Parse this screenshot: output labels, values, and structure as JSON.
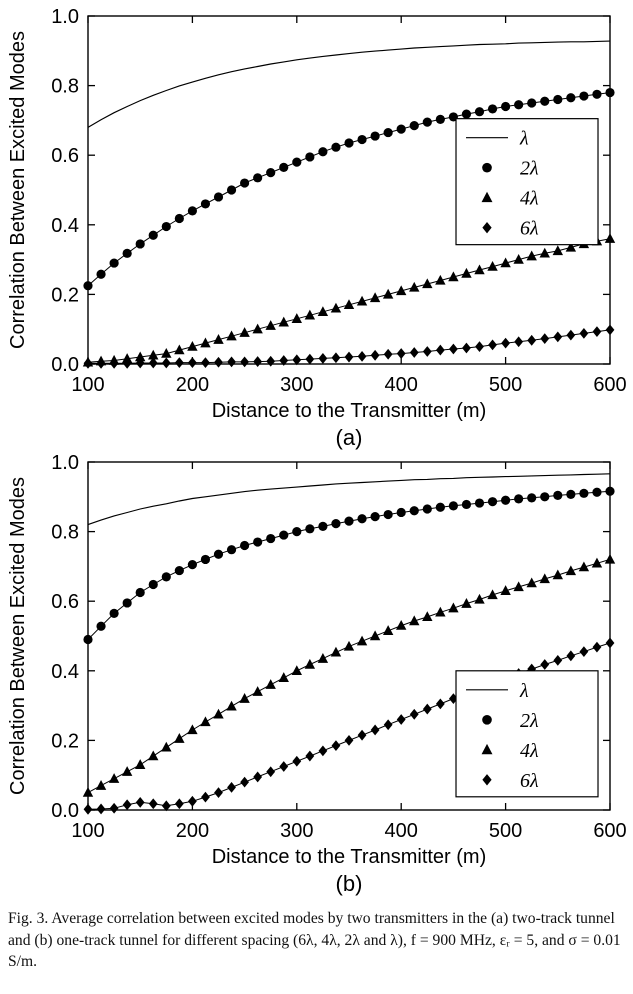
{
  "page": {
    "background": "#ffffff",
    "foreground": "#000000"
  },
  "chart_data": [
    {
      "id": "a",
      "type": "line",
      "sublabel": "(a)",
      "xlabel": "Distance to the Transmitter (m)",
      "ylabel": "Correlation Between Excited Modes",
      "xlim": [
        100,
        600
      ],
      "ylim": [
        0,
        1
      ],
      "xticks": [
        100,
        200,
        300,
        400,
        500,
        600
      ],
      "xtick_labels": [
        "100",
        "200",
        "300",
        "400",
        "500",
        "600"
      ],
      "yticks": [
        0,
        0.2,
        0.4,
        0.6,
        0.8,
        1
      ],
      "ytick_labels": [
        "0.0",
        "0.2",
        "0.4",
        "0.6",
        "0.8",
        "1.0"
      ],
      "grid": false,
      "x_start": 100,
      "x_step": 12.5,
      "legend": {
        "position": "right-upper-inside",
        "fx": 0.705,
        "fy": 0.295,
        "entries": [
          "λ",
          "2λ",
          "4λ",
          "6λ"
        ]
      },
      "series": [
        {
          "id": "lambda",
          "name": "λ",
          "marker": "none",
          "values": [
            0.68,
            0.702,
            0.722,
            0.74,
            0.757,
            0.772,
            0.786,
            0.799,
            0.81,
            0.821,
            0.831,
            0.84,
            0.848,
            0.855,
            0.862,
            0.868,
            0.874,
            0.879,
            0.884,
            0.888,
            0.892,
            0.896,
            0.899,
            0.902,
            0.905,
            0.908,
            0.91,
            0.912,
            0.914,
            0.916,
            0.918,
            0.919,
            0.92,
            0.922,
            0.923,
            0.924,
            0.925,
            0.926,
            0.926,
            0.927,
            0.928
          ]
        },
        {
          "id": "2lambda",
          "name": "2λ",
          "marker": "circle",
          "values": [
            0.225,
            0.258,
            0.29,
            0.318,
            0.345,
            0.37,
            0.395,
            0.418,
            0.44,
            0.46,
            0.48,
            0.5,
            0.52,
            0.535,
            0.55,
            0.565,
            0.58,
            0.595,
            0.61,
            0.623,
            0.635,
            0.645,
            0.655,
            0.665,
            0.675,
            0.685,
            0.695,
            0.703,
            0.71,
            0.718,
            0.725,
            0.733,
            0.74,
            0.745,
            0.75,
            0.755,
            0.76,
            0.765,
            0.77,
            0.775,
            0.78
          ]
        },
        {
          "id": "4lambda",
          "name": "4λ",
          "marker": "triangle-up",
          "values": [
            0.005,
            0.008,
            0.01,
            0.015,
            0.02,
            0.025,
            0.03,
            0.04,
            0.05,
            0.06,
            0.07,
            0.08,
            0.09,
            0.1,
            0.11,
            0.12,
            0.13,
            0.14,
            0.15,
            0.16,
            0.17,
            0.18,
            0.19,
            0.2,
            0.21,
            0.22,
            0.23,
            0.24,
            0.25,
            0.26,
            0.27,
            0.28,
            0.29,
            0.3,
            0.31,
            0.318,
            0.325,
            0.335,
            0.345,
            0.353,
            0.36
          ]
        },
        {
          "id": "6lambda",
          "name": "6λ",
          "marker": "diamond",
          "values": [
            0.002,
            0.002,
            0.002,
            0.002,
            0.003,
            0.003,
            0.003,
            0.004,
            0.004,
            0.004,
            0.005,
            0.006,
            0.006,
            0.007,
            0.008,
            0.01,
            0.012,
            0.014,
            0.016,
            0.018,
            0.02,
            0.022,
            0.025,
            0.028,
            0.03,
            0.033,
            0.036,
            0.04,
            0.043,
            0.046,
            0.05,
            0.055,
            0.06,
            0.064,
            0.068,
            0.073,
            0.078,
            0.083,
            0.088,
            0.093,
            0.098
          ]
        }
      ]
    },
    {
      "id": "b",
      "type": "line",
      "sublabel": "(b)",
      "xlabel": "Distance to the Transmitter (m)",
      "ylabel": "Correlation Between Excited Modes",
      "xlim": [
        100,
        600
      ],
      "ylim": [
        0,
        1
      ],
      "xticks": [
        100,
        200,
        300,
        400,
        500,
        600
      ],
      "xtick_labels": [
        "100",
        "200",
        "300",
        "400",
        "500",
        "600"
      ],
      "yticks": [
        0,
        0.2,
        0.4,
        0.6,
        0.8,
        1
      ],
      "ytick_labels": [
        "0.0",
        "0.2",
        "0.4",
        "0.6",
        "0.8",
        "1.0"
      ],
      "grid": false,
      "x_start": 100,
      "x_step": 12.5,
      "legend": {
        "position": "right-lower-inside",
        "fx": 0.705,
        "fy": 0.6,
        "entries": [
          "λ",
          "2λ",
          "4λ",
          "6λ"
        ]
      },
      "series": [
        {
          "id": "lambda",
          "name": "λ",
          "marker": "none",
          "values": [
            0.82,
            0.833,
            0.845,
            0.855,
            0.865,
            0.873,
            0.88,
            0.888,
            0.895,
            0.9,
            0.905,
            0.91,
            0.915,
            0.919,
            0.922,
            0.925,
            0.928,
            0.931,
            0.934,
            0.937,
            0.939,
            0.941,
            0.943,
            0.945,
            0.947,
            0.949,
            0.95,
            0.952,
            0.953,
            0.955,
            0.956,
            0.957,
            0.958,
            0.959,
            0.96,
            0.961,
            0.962,
            0.963,
            0.964,
            0.965,
            0.966
          ]
        },
        {
          "id": "2lambda",
          "name": "2λ",
          "marker": "circle",
          "values": [
            0.49,
            0.528,
            0.565,
            0.595,
            0.625,
            0.648,
            0.67,
            0.688,
            0.705,
            0.72,
            0.735,
            0.748,
            0.76,
            0.77,
            0.78,
            0.79,
            0.8,
            0.808,
            0.815,
            0.823,
            0.83,
            0.837,
            0.843,
            0.849,
            0.855,
            0.86,
            0.865,
            0.87,
            0.874,
            0.878,
            0.882,
            0.886,
            0.89,
            0.894,
            0.897,
            0.9,
            0.904,
            0.907,
            0.91,
            0.913,
            0.916
          ]
        },
        {
          "id": "4lambda",
          "name": "4λ",
          "marker": "triangle-up",
          "values": [
            0.05,
            0.07,
            0.09,
            0.11,
            0.13,
            0.155,
            0.18,
            0.205,
            0.23,
            0.253,
            0.275,
            0.298,
            0.32,
            0.34,
            0.36,
            0.38,
            0.4,
            0.418,
            0.435,
            0.453,
            0.47,
            0.485,
            0.5,
            0.515,
            0.53,
            0.543,
            0.555,
            0.568,
            0.58,
            0.593,
            0.605,
            0.618,
            0.63,
            0.641,
            0.652,
            0.664,
            0.675,
            0.687,
            0.698,
            0.709,
            0.72
          ]
        },
        {
          "id": "6lambda",
          "name": "6λ",
          "marker": "diamond",
          "values": [
            0.002,
            0.003,
            0.005,
            0.015,
            0.022,
            0.018,
            0.012,
            0.018,
            0.025,
            0.037,
            0.05,
            0.065,
            0.08,
            0.095,
            0.11,
            0.125,
            0.14,
            0.155,
            0.17,
            0.185,
            0.2,
            0.215,
            0.23,
            0.245,
            0.26,
            0.275,
            0.29,
            0.305,
            0.32,
            0.335,
            0.35,
            0.365,
            0.38,
            0.392,
            0.405,
            0.418,
            0.43,
            0.443,
            0.455,
            0.468,
            0.48
          ]
        }
      ]
    }
  ],
  "caption": {
    "text": "Fig. 3.  Average correlation between excited modes by two transmitters in the (a) two-track tunnel and (b) one-track tunnel for different spacing (6λ, 4λ, 2λ and λ), f = 900 MHz, εᵣ = 5, and σ = 0.01 S/m."
  }
}
